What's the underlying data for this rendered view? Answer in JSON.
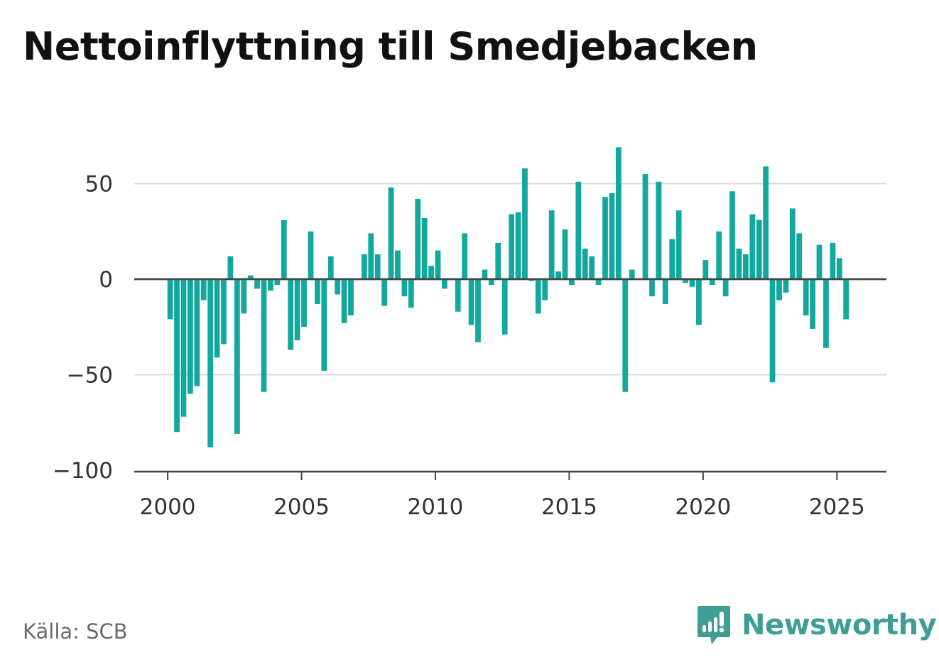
{
  "title": "Nettoinflyttning till Smedjebacken",
  "source": "Källa: SCB",
  "logo_text": "Newsworthy",
  "colors": {
    "bar": "#13a89e",
    "grid": "#d9d9d9",
    "zero_line": "#444444",
    "logo": "#3f9e94"
  },
  "chart_data": {
    "type": "bar",
    "title": "Nettoinflyttning till Smedjebacken",
    "xlabel": "",
    "ylabel": "",
    "xlim": [
      1998.75,
      2026.85
    ],
    "ylim": [
      -100,
      70
    ],
    "x_ticks": [
      2000,
      2005,
      2010,
      2015,
      2020,
      2025
    ],
    "x_tick_labels": [
      "2000",
      "2005",
      "2010",
      "2015",
      "2020",
      "2025"
    ],
    "y_ticks": [
      50,
      0,
      -50,
      -100
    ],
    "y_tick_labels": [
      "50",
      "0",
      "−50",
      "−100"
    ],
    "grid": true,
    "frequency": "quarterly",
    "series": [
      {
        "x": [
          "2000-Q1",
          "2000-Q2",
          "2000-Q3",
          "2000-Q4",
          "2001-Q1",
          "2001-Q2",
          "2001-Q3",
          "2001-Q4",
          "2002-Q1",
          "2002-Q2",
          "2002-Q3",
          "2002-Q4",
          "2003-Q1",
          "2003-Q2",
          "2003-Q3",
          "2003-Q4",
          "2004-Q1",
          "2004-Q2",
          "2004-Q3",
          "2004-Q4",
          "2005-Q1",
          "2005-Q2",
          "2005-Q3",
          "2005-Q4",
          "2006-Q1",
          "2006-Q2",
          "2006-Q3",
          "2006-Q4",
          "2007-Q1",
          "2007-Q2",
          "2007-Q3",
          "2007-Q4",
          "2008-Q1",
          "2008-Q2",
          "2008-Q3",
          "2008-Q4",
          "2009-Q1",
          "2009-Q2",
          "2009-Q3",
          "2009-Q4",
          "2010-Q1",
          "2010-Q2",
          "2010-Q3",
          "2010-Q4",
          "2011-Q1",
          "2011-Q2",
          "2011-Q3",
          "2011-Q4",
          "2012-Q1",
          "2012-Q2",
          "2012-Q3",
          "2012-Q4",
          "2013-Q1",
          "2013-Q2",
          "2013-Q3",
          "2013-Q4",
          "2014-Q1",
          "2014-Q2",
          "2014-Q3",
          "2014-Q4",
          "2015-Q1",
          "2015-Q2",
          "2015-Q3",
          "2015-Q4",
          "2016-Q1",
          "2016-Q2",
          "2016-Q3",
          "2016-Q4",
          "2017-Q1",
          "2017-Q2",
          "2017-Q3",
          "2017-Q4",
          "2018-Q1",
          "2018-Q2",
          "2018-Q3",
          "2018-Q4",
          "2019-Q1",
          "2019-Q2",
          "2019-Q3",
          "2019-Q4",
          "2020-Q1",
          "2020-Q2",
          "2020-Q3",
          "2020-Q4",
          "2021-Q1",
          "2021-Q2",
          "2021-Q3",
          "2021-Q4",
          "2022-Q1",
          "2022-Q2",
          "2022-Q3",
          "2022-Q4",
          "2023-Q1",
          "2023-Q2",
          "2023-Q3",
          "2023-Q4",
          "2024-Q1",
          "2024-Q2",
          "2024-Q3",
          "2024-Q4",
          "2025-Q1",
          "2025-Q2"
        ],
        "values": [
          -21,
          -80,
          -72,
          -60,
          -56,
          -11,
          -88,
          -41,
          -34,
          12,
          -81,
          -18,
          2,
          -5,
          -59,
          -6,
          -3,
          31,
          -37,
          -32,
          -25,
          25,
          -13,
          -48,
          12,
          -8,
          -23,
          -19,
          0,
          13,
          24,
          13,
          -14,
          48,
          15,
          -9,
          -15,
          42,
          32,
          7,
          15,
          -5,
          0,
          -17,
          24,
          -24,
          -33,
          5,
          -3,
          19,
          -29,
          34,
          35,
          58,
          -1,
          -18,
          -11,
          36,
          4,
          26,
          -3,
          51,
          16,
          12,
          -3,
          43,
          45,
          69,
          -59,
          5,
          0,
          55,
          -9,
          51,
          -13,
          21,
          36,
          -2,
          -4,
          -24,
          10,
          -3,
          25,
          -9,
          46,
          16,
          13,
          34,
          31,
          59,
          -54,
          -11,
          -7,
          37,
          24,
          -19,
          -26,
          18,
          -36,
          19,
          11,
          -21
        ]
      }
    ]
  }
}
